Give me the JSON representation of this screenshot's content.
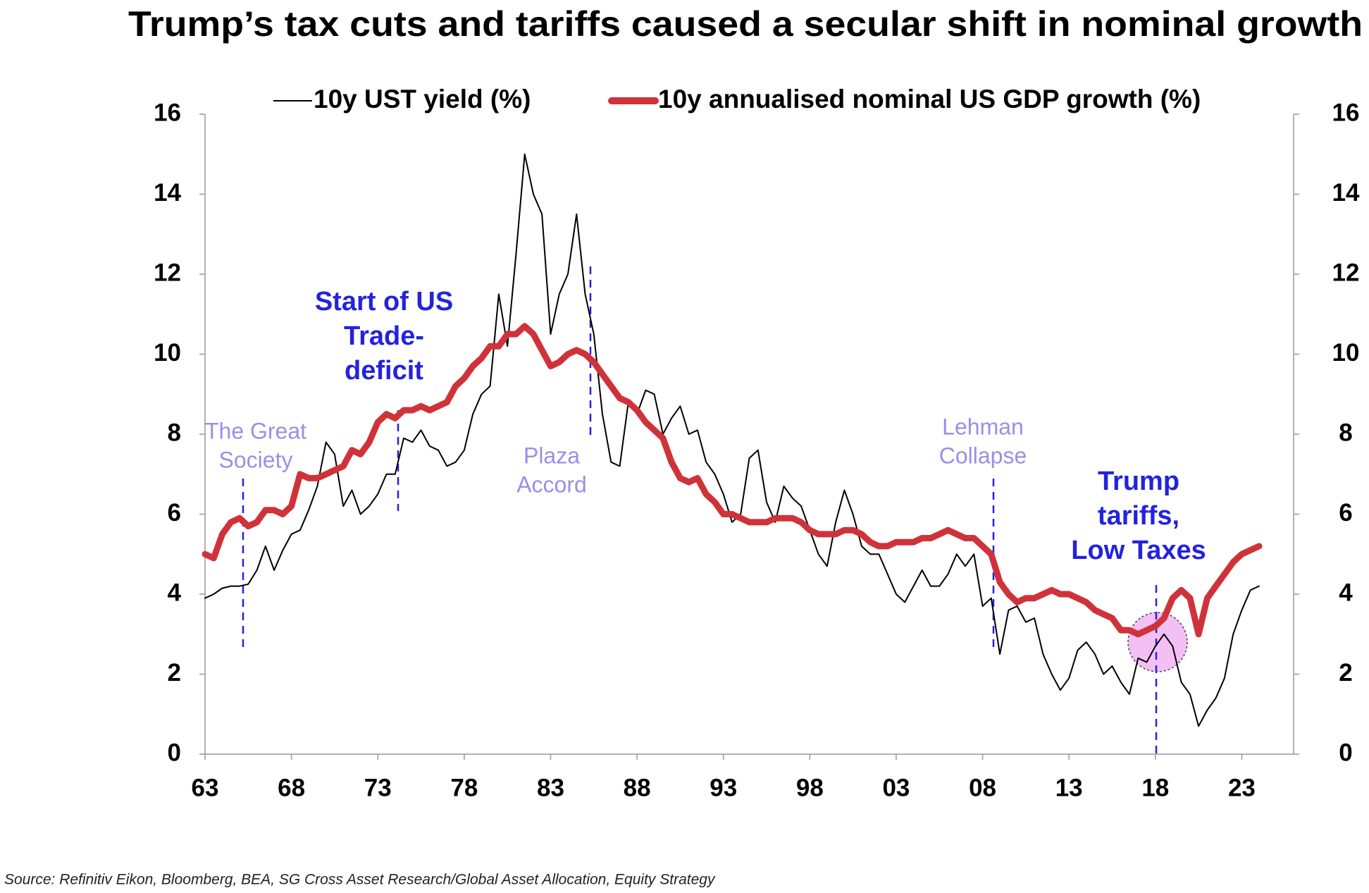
{
  "chart_data": {
    "type": "line",
    "title": "Trump’s tax cuts and tariffs caused a secular shift in nominal growth",
    "source": "Source: Refinitiv Eikon,  Bloomberg, BEA, SG Cross Asset Research/Global Asset Allocation, Equity Strategy",
    "x": [
      1963,
      1963.5,
      1964,
      1964.5,
      1965,
      1965.5,
      1966,
      1966.5,
      1967,
      1967.5,
      1968,
      1968.5,
      1969,
      1969.5,
      1970,
      1970.5,
      1971,
      1971.5,
      1972,
      1972.5,
      1973,
      1973.5,
      1974,
      1974.5,
      1975,
      1975.5,
      1976,
      1976.5,
      1977,
      1977.5,
      1978,
      1978.5,
      1979,
      1979.5,
      1980,
      1980.5,
      1981,
      1981.5,
      1982,
      1982.5,
      1983,
      1983.5,
      1984,
      1984.5,
      1985,
      1985.5,
      1986,
      1986.5,
      1987,
      1987.5,
      1988,
      1988.5,
      1989,
      1989.5,
      1990,
      1990.5,
      1991,
      1991.5,
      1992,
      1992.5,
      1993,
      1993.5,
      1994,
      1994.5,
      1995,
      1995.5,
      1996,
      1996.5,
      1997,
      1997.5,
      1998,
      1998.5,
      1999,
      1999.5,
      2000,
      2000.5,
      2001,
      2001.5,
      2002,
      2002.5,
      2003,
      2003.5,
      2004,
      2004.5,
      2005,
      2005.5,
      2006,
      2006.5,
      2007,
      2007.5,
      2008,
      2008.5,
      2009,
      2009.5,
      2010,
      2010.5,
      2011,
      2011.5,
      2012,
      2012.5,
      2013,
      2013.5,
      2014,
      2014.5,
      2015,
      2015.5,
      2016,
      2016.5,
      2017,
      2017.5,
      2018,
      2018.5,
      2019,
      2019.5,
      2020,
      2020.5,
      2021,
      2021.5,
      2022,
      2022.5,
      2023,
      2023.5,
      2024
    ],
    "series": [
      {
        "name": "10y UST yield (%)",
        "color": "#000000",
        "width": 2,
        "values": [
          3.9,
          4.0,
          4.15,
          4.2,
          4.2,
          4.25,
          4.6,
          5.2,
          4.6,
          5.1,
          5.5,
          5.6,
          6.1,
          6.7,
          7.8,
          7.5,
          6.2,
          6.6,
          6.0,
          6.2,
          6.5,
          7.0,
          7.0,
          7.9,
          7.8,
          8.1,
          7.7,
          7.6,
          7.2,
          7.3,
          7.6,
          8.5,
          9.0,
          9.2,
          11.5,
          10.2,
          12.5,
          15.0,
          14.0,
          13.5,
          10.5,
          11.5,
          12.0,
          13.5,
          11.5,
          10.5,
          8.5,
          7.3,
          7.2,
          8.8,
          8.5,
          9.1,
          9.0,
          8.0,
          8.4,
          8.7,
          8.0,
          8.1,
          7.3,
          7.0,
          6.5,
          5.8,
          6.0,
          7.4,
          7.6,
          6.3,
          5.8,
          6.7,
          6.4,
          6.2,
          5.6,
          5.0,
          4.7,
          5.8,
          6.6,
          6.0,
          5.2,
          5.0,
          5.0,
          4.5,
          4.0,
          3.8,
          4.2,
          4.6,
          4.2,
          4.2,
          4.5,
          5.0,
          4.7,
          5.0,
          3.7,
          3.9,
          2.5,
          3.6,
          3.7,
          3.3,
          3.4,
          2.5,
          2.0,
          1.6,
          1.9,
          2.6,
          2.8,
          2.5,
          2.0,
          2.2,
          1.8,
          1.5,
          2.4,
          2.3,
          2.7,
          3.0,
          2.7,
          1.8,
          1.5,
          0.7,
          1.1,
          1.4,
          1.9,
          3.0,
          3.6,
          4.1,
          4.2
        ]
      },
      {
        "name": "10y annualised nominal US GDP growth (%)",
        "color": "#d0323a",
        "width": 9,
        "axis": "y2",
        "values": [
          5.0,
          4.9,
          5.5,
          5.8,
          5.9,
          5.7,
          5.8,
          6.1,
          6.1,
          6.0,
          6.2,
          7.0,
          6.9,
          6.9,
          7.0,
          7.1,
          7.2,
          7.6,
          7.5,
          7.8,
          8.3,
          8.5,
          8.4,
          8.6,
          8.6,
          8.7,
          8.6,
          8.7,
          8.8,
          9.2,
          9.4,
          9.7,
          9.9,
          10.2,
          10.2,
          10.5,
          10.5,
          10.7,
          10.5,
          10.1,
          9.7,
          9.8,
          10.0,
          10.1,
          10.0,
          9.8,
          9.5,
          9.2,
          8.9,
          8.8,
          8.6,
          8.3,
          8.1,
          7.9,
          7.3,
          6.9,
          6.8,
          6.9,
          6.5,
          6.3,
          6.0,
          6.0,
          5.9,
          5.8,
          5.8,
          5.8,
          5.9,
          5.9,
          5.9,
          5.8,
          5.6,
          5.5,
          5.5,
          5.5,
          5.6,
          5.6,
          5.5,
          5.3,
          5.2,
          5.2,
          5.3,
          5.3,
          5.3,
          5.4,
          5.4,
          5.5,
          5.6,
          5.5,
          5.4,
          5.4,
          5.2,
          5.0,
          4.3,
          4.0,
          3.8,
          3.9,
          3.9,
          4.0,
          4.1,
          4.0,
          4.0,
          3.9,
          3.8,
          3.6,
          3.5,
          3.4,
          3.1,
          3.1,
          3.0,
          3.1,
          3.2,
          3.4,
          3.9,
          4.1,
          3.9,
          3.0,
          3.9,
          4.2,
          4.5,
          4.8,
          5.0,
          5.1,
          5.2
        ]
      }
    ],
    "xlim": [
      1963,
      2026
    ],
    "xticks": [
      {
        "value": 1963,
        "label": "63"
      },
      {
        "value": 1968,
        "label": "68"
      },
      {
        "value": 1973,
        "label": "73"
      },
      {
        "value": 1978,
        "label": "78"
      },
      {
        "value": 1983,
        "label": "83"
      },
      {
        "value": 1988,
        "label": "88"
      },
      {
        "value": 1993,
        "label": "93"
      },
      {
        "value": 1998,
        "label": "98"
      },
      {
        "value": 2003,
        "label": "03"
      },
      {
        "value": 2008,
        "label": "08"
      },
      {
        "value": 2013,
        "label": "13"
      },
      {
        "value": 2018,
        "label": "18"
      },
      {
        "value": 2023,
        "label": "23"
      }
    ],
    "ylim": [
      0,
      16
    ],
    "yticks": [
      0,
      2,
      4,
      6,
      8,
      10,
      12,
      14,
      16
    ],
    "y2lim": [
      0,
      16
    ],
    "y2ticks": [
      0,
      2,
      4,
      6,
      8,
      10,
      12,
      14,
      16
    ],
    "grid": false,
    "legend": "top",
    "annotations": [
      {
        "lines": [
          "The Great",
          "Society"
        ],
        "style": "light"
      },
      {
        "lines": [
          "Start of US",
          "Trade-",
          "deficit"
        ],
        "style": "bold"
      },
      {
        "lines": [
          "Plaza",
          "Accord"
        ],
        "style": "light"
      },
      {
        "lines": [
          "Lehman",
          "Collapse"
        ],
        "style": "light"
      },
      {
        "lines": [
          "Trump",
          "tariffs,",
          "Low Taxes"
        ],
        "style": "bold"
      }
    ]
  }
}
